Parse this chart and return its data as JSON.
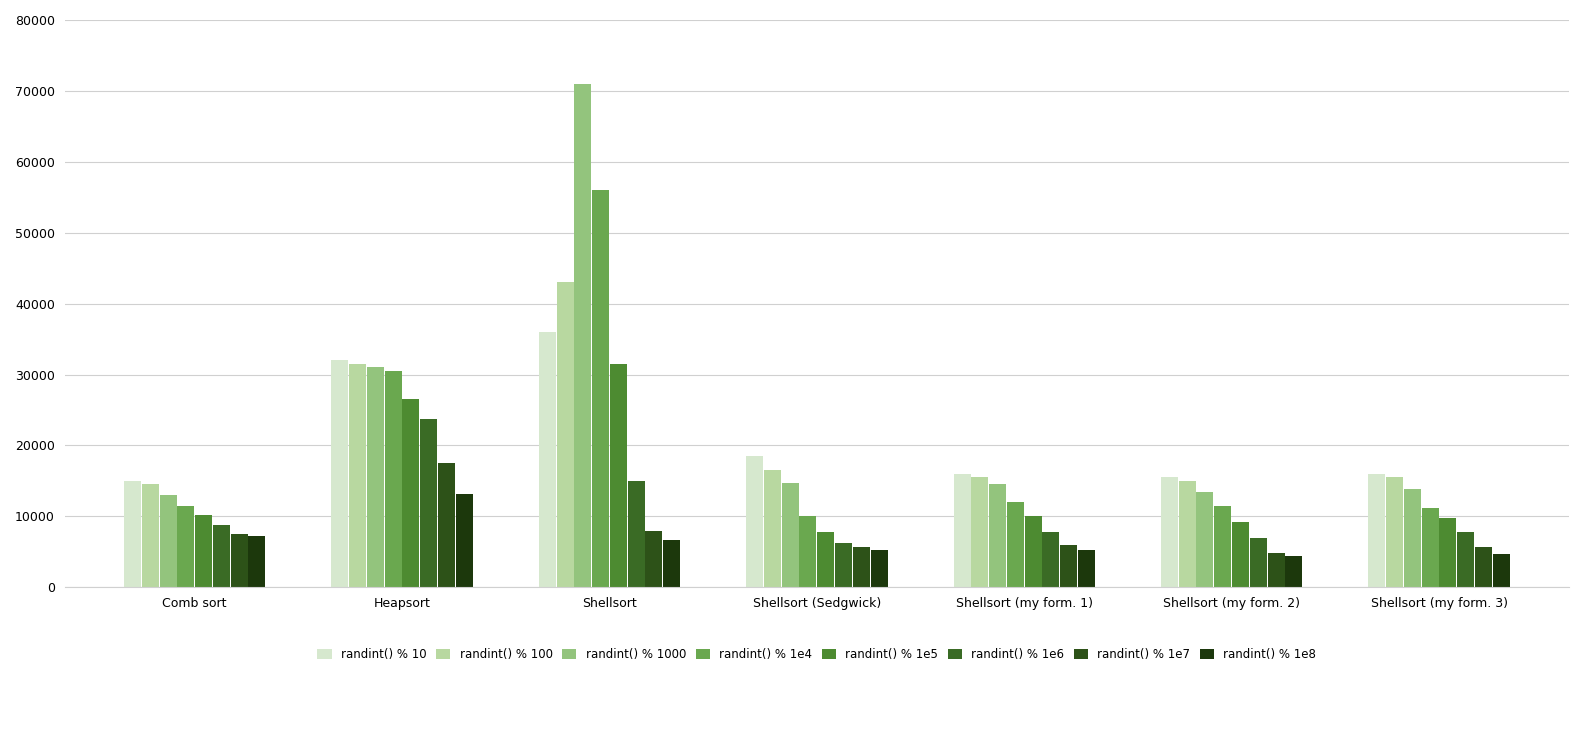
{
  "groups": [
    "Comb sort",
    "Heapsort",
    "Shellsort",
    "Shellsort (Sedgwick)",
    "Shellsort (my form. 1)",
    "Shellsort (my form. 2)",
    "Shellsort (my form. 3)"
  ],
  "series_labels": [
    "randint() % 10",
    "randint() % 100",
    "randint() % 1000",
    "randint() % 1e4",
    "randint() % 1e5",
    "randint() % 1e6",
    "randint() % 1e7",
    "randint() % 1e8"
  ],
  "colors": [
    "#d6e8ce",
    "#b8d8a0",
    "#93c47d",
    "#6aa84f",
    "#4d8b31",
    "#3a6b25",
    "#2d5218",
    "#1c380c"
  ],
  "data": [
    [
      15000,
      14500,
      13000,
      11500,
      10200,
      8800,
      7500,
      7200
    ],
    [
      32000,
      31500,
      31000,
      30500,
      26500,
      23800,
      17500,
      13200
    ],
    [
      36000,
      43000,
      71000,
      56000,
      31500,
      15000,
      8000,
      6700
    ],
    [
      18500,
      16500,
      14700,
      10000,
      7800,
      6200,
      5700,
      5200
    ],
    [
      16000,
      15500,
      14500,
      12000,
      10000,
      7800,
      6000,
      5200
    ],
    [
      15500,
      15000,
      13500,
      11500,
      9200,
      6900,
      4900,
      4400
    ],
    [
      16000,
      15500,
      13800,
      11200,
      9800,
      7800,
      5700,
      4700
    ]
  ],
  "ylim": [
    0,
    80000
  ],
  "yticks": [
    0,
    10000,
    20000,
    30000,
    40000,
    50000,
    60000,
    70000,
    80000
  ],
  "background_color": "#ffffff",
  "grid_color": "#d0d0d0",
  "figsize": [
    15.84,
    7.3
  ],
  "dpi": 100
}
